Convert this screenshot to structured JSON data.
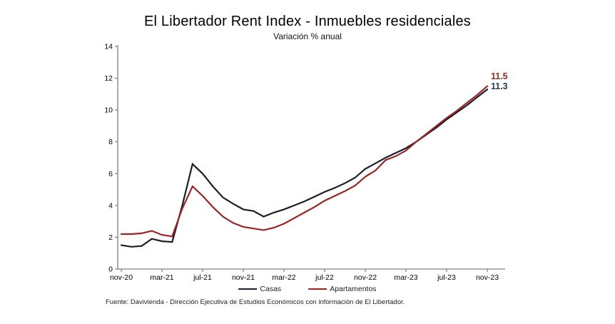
{
  "header": {
    "title": "El Libertador Rent Index - Inmuebles residenciales",
    "subtitle": "Variación % anual"
  },
  "chart_data": {
    "type": "line",
    "title": "El Libertador Rent Index - Inmuebles residenciales",
    "subtitle": "Variación % anual",
    "ylim": [
      0,
      14
    ],
    "ytick_step": 2,
    "grid": false,
    "legend_position": "bottom",
    "axis_color": "#808080",
    "tick_label_color": "#000000",
    "x": [
      "nov-20",
      "dic-20",
      "ene-21",
      "feb-21",
      "mar-21",
      "abr-21",
      "may-21",
      "jun-21",
      "jul-21",
      "ago-21",
      "sep-21",
      "oct-21",
      "nov-21",
      "dic-21",
      "ene-22",
      "feb-22",
      "mar-22",
      "abr-22",
      "may-22",
      "jun-22",
      "jul-22",
      "ago-22",
      "sep-22",
      "oct-22",
      "nov-22",
      "dic-22",
      "ene-23",
      "feb-23",
      "mar-23",
      "abr-23",
      "may-23",
      "jun-23",
      "jul-23",
      "ago-23",
      "sep-23",
      "oct-23",
      "nov-23"
    ],
    "x_tick_labels": [
      "nov-20",
      "mar-21",
      "jul-21",
      "nov-21",
      "mar-22",
      "jul-22",
      "nov-22",
      "mar-23",
      "jul-23",
      "nov-23"
    ],
    "series": [
      {
        "name": "Casas",
        "color": "#1a1f2b",
        "values": [
          1.5,
          1.4,
          1.45,
          1.9,
          1.75,
          1.7,
          4.0,
          6.6,
          6.0,
          5.2,
          4.5,
          4.1,
          3.75,
          3.65,
          3.3,
          3.55,
          3.75,
          4.0,
          4.25,
          4.55,
          4.85,
          5.1,
          5.4,
          5.75,
          6.3,
          6.65,
          7.0,
          7.3,
          7.6,
          8.0,
          8.45,
          8.9,
          9.4,
          9.85,
          10.3,
          10.8,
          11.3
        ]
      },
      {
        "name": "Apartamentos",
        "color": "#9e2424",
        "values": [
          2.2,
          2.2,
          2.25,
          2.4,
          2.15,
          2.05,
          3.8,
          5.2,
          4.6,
          3.9,
          3.3,
          2.9,
          2.65,
          2.55,
          2.45,
          2.6,
          2.85,
          3.2,
          3.55,
          3.9,
          4.3,
          4.6,
          4.9,
          5.25,
          5.8,
          6.2,
          6.85,
          7.1,
          7.45,
          8.0,
          8.5,
          9.0,
          9.5,
          9.95,
          10.45,
          10.95,
          11.5
        ]
      }
    ]
  },
  "annotations": {
    "apartamentos_end": "11.5",
    "apartamentos_end_color": "#9e2824",
    "casas_end": "11.3",
    "casas_end_color": "#243a52"
  },
  "legend": {
    "items": [
      {
        "label": "Casas",
        "color": "#1a1f2b"
      },
      {
        "label": "Apartamentos",
        "color": "#9e2424"
      }
    ]
  },
  "footer": {
    "source": "Fuente: Davivienda - Dirección Ejecutiva de Estudios Económicos con información de El Libertador."
  }
}
